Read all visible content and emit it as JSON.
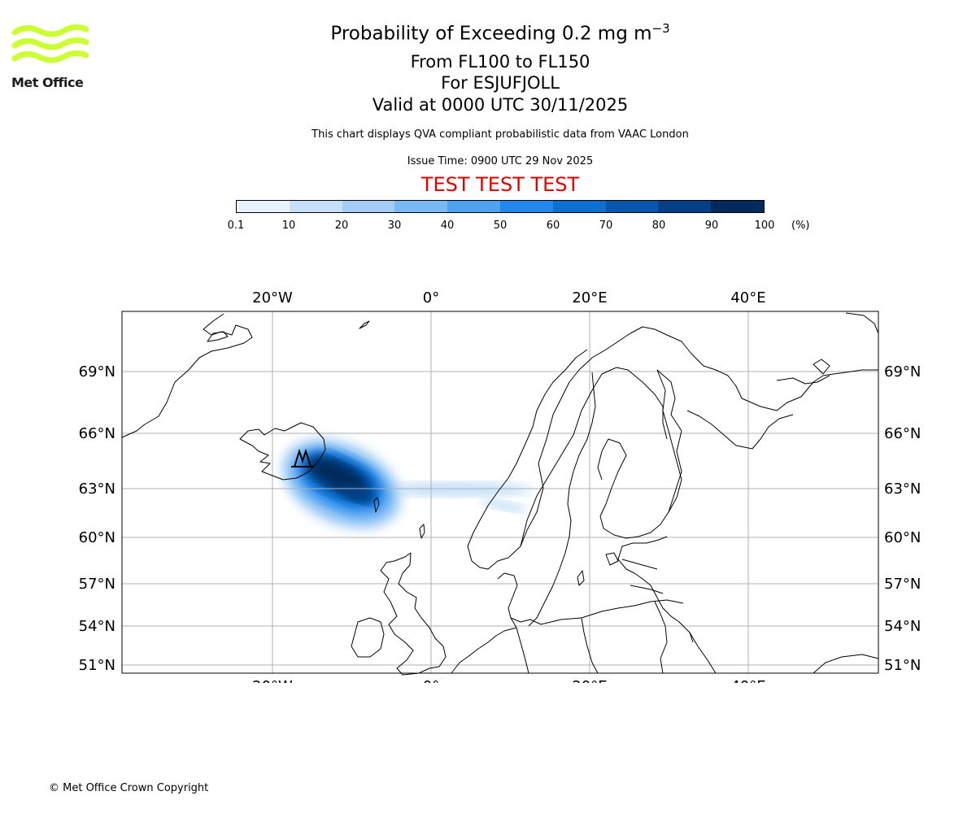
{
  "logo": {
    "text": "Met Office",
    "color": "#ccff33"
  },
  "header": {
    "title": "Probability of Exceeding 0.2 mg m",
    "title_exponent": "−3",
    "level_range": "From FL100 to FL150",
    "volcano": "For ESJUFJOLL",
    "valid_time": "Valid at 0000 UTC 30/11/2025",
    "description": "This chart displays QVA compliant probabilistic data from VAAC London",
    "issue_time": "Issue Time: 0900 UTC 29 Nov 2025",
    "test_banner": "TEST TEST TEST",
    "test_color": "#e00000"
  },
  "colorbar": {
    "ticks": [
      "0.1",
      "10",
      "20",
      "30",
      "40",
      "50",
      "60",
      "70",
      "80",
      "90",
      "100"
    ],
    "unit": "(%)",
    "colors": [
      "#e8f2fd",
      "#c6e0f9",
      "#a3cdf6",
      "#79b8f3",
      "#4da3f0",
      "#2487ec",
      "#0d6fd0",
      "#0657ad",
      "#053f85",
      "#032a5c"
    ]
  },
  "map": {
    "lon_labels": [
      "20°W",
      "0°",
      "20°E",
      "40°E"
    ],
    "lat_labels": [
      "69°N",
      "66°N",
      "63°N",
      "60°N",
      "57°N",
      "54°N",
      "51°N"
    ],
    "grid_color": "#b0b0b0",
    "volcano_marker": "volcano-icon"
  },
  "footer": {
    "copyright": "© Met Office Crown Copyright"
  }
}
